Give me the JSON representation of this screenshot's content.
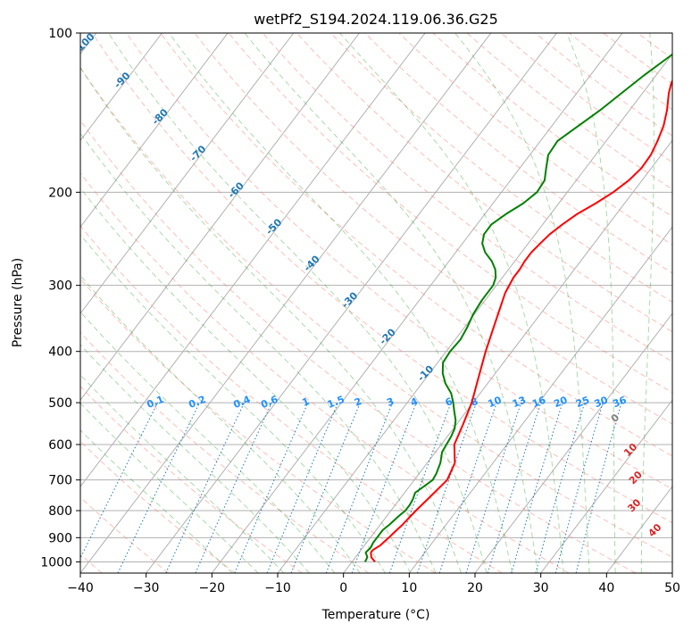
{
  "chart_data": {
    "type": "skew-t",
    "title": "wetPf2_S194.2024.119.06.36.G25",
    "xlabel": "Temperature (°C)",
    "ylabel": "Pressure (hPa)",
    "xlim": [
      -40,
      50
    ],
    "ylim": [
      1050,
      100
    ],
    "log_pressure_axis": true,
    "grid": true,
    "x_ticks": [
      "−40",
      "−30",
      "−20",
      "−10",
      "0",
      "10",
      "20",
      "30",
      "40",
      "50"
    ],
    "x_tick_values": [
      -40,
      -30,
      -20,
      -10,
      0,
      10,
      20,
      30,
      40,
      50
    ],
    "y_ticks": [
      "1000",
      "900",
      "800",
      "700",
      "600",
      "500",
      "400",
      "300",
      "200",
      "100"
    ],
    "y_tick_values": [
      1000,
      900,
      800,
      700,
      600,
      500,
      400,
      300,
      200,
      100
    ],
    "colors": {
      "temperature": "#ff0000",
      "dewpoint": "#008000",
      "isotherm": "#b0b0b0",
      "dry_adiabat": "#fa8072",
      "moist_adiabat": "#2ca02c",
      "mixing_ratio": "#1f77b4",
      "mixing_ratio_label": "#1e90ff",
      "theta_e_label": "#d62728",
      "frost_line": "#d2b48c"
    },
    "series": [
      {
        "role": "temperature",
        "pressure": [
          1000,
          980,
          960,
          950,
          930,
          900,
          880,
          850,
          800,
          750,
          700,
          650,
          600,
          550,
          500,
          450,
          400,
          350,
          310,
          290,
          280,
          270,
          260,
          250,
          240,
          230,
          220,
          210,
          200,
          190,
          180,
          170,
          160,
          150,
          140,
          130,
          125,
          120,
          115,
          110,
          105,
          100
        ],
        "temperature": [
          3.5,
          2.4,
          1.8,
          1.8,
          2.4,
          2.8,
          3.0,
          3.4,
          3.8,
          4.4,
          5.0,
          4.2,
          2.0,
          1.0,
          -0.2,
          -2.0,
          -4.0,
          -6.0,
          -7.8,
          -8.3,
          -8.3,
          -8.5,
          -8.5,
          -8.2,
          -7.8,
          -7.0,
          -6.0,
          -4.4,
          -3.0,
          -2.0,
          -1.5,
          -1.6,
          -2.2,
          -3.0,
          -4.3,
          -6.0,
          -6.7,
          -7.2,
          -7.8,
          -9.0,
          -10.2,
          -11.5
        ]
      },
      {
        "role": "dewpoint",
        "pressure": [
          1000,
          980,
          960,
          940,
          920,
          900,
          870,
          850,
          820,
          800,
          780,
          760,
          740,
          720,
          700,
          680,
          650,
          620,
          600,
          580,
          560,
          540,
          520,
          500,
          480,
          460,
          440,
          420,
          400,
          380,
          360,
          340,
          320,
          300,
          290,
          280,
          270,
          260,
          250,
          240,
          230,
          220,
          210,
          200,
          190,
          180,
          170,
          160,
          150,
          140,
          130,
          120,
          110,
          100
        ],
        "temperature": [
          2.0,
          1.8,
          1.0,
          1.2,
          1.0,
          1.0,
          1.0,
          1.4,
          1.8,
          2.2,
          2.2,
          2.0,
          1.6,
          2.2,
          2.8,
          2.6,
          2.0,
          1.0,
          0.8,
          0.6,
          0.2,
          -0.6,
          -1.8,
          -3.0,
          -4.4,
          -6.4,
          -8.0,
          -9.2,
          -9.4,
          -9.2,
          -9.6,
          -10.2,
          -10.5,
          -10.5,
          -11.0,
          -12.0,
          -13.5,
          -15.5,
          -17.0,
          -17.8,
          -17.8,
          -16.8,
          -15.4,
          -14.6,
          -14.8,
          -16.0,
          -17.2,
          -17.4,
          -16.0,
          -14.5,
          -13.2,
          -11.8,
          -10.0,
          -7.8
        ]
      }
    ],
    "isotherm_values": [
      -120,
      -110,
      -100,
      -90,
      -80,
      -70,
      -60,
      -50,
      -40,
      -30,
      -20,
      -10,
      0,
      10,
      20,
      30,
      40,
      50
    ],
    "isotherm_labels": [
      "-100",
      "-90",
      "-80",
      "-70",
      "-60",
      "-50",
      "-40",
      "-30",
      "-20",
      "-10"
    ],
    "isotherm_label_values": [
      -100,
      -90,
      -80,
      -70,
      -60,
      -50,
      -40,
      -30,
      -20,
      -10
    ],
    "mixing_ratio_labels": [
      "0.1",
      "0.2",
      "0.4",
      "0.6",
      "1",
      "1.5",
      "2",
      "3",
      "4",
      "6",
      "8",
      "10",
      "13",
      "16",
      "20",
      "25",
      "30",
      "36"
    ],
    "mixing_ratio_values": [
      0.1,
      0.2,
      0.4,
      0.6,
      1,
      1.5,
      2,
      3,
      4,
      6,
      8,
      10,
      13,
      16,
      20,
      25,
      30,
      36
    ],
    "theta_e_labels": [
      "0",
      "10",
      "20",
      "30",
      "40"
    ],
    "theta_e_values": [
      0,
      10,
      20,
      30,
      40
    ]
  }
}
